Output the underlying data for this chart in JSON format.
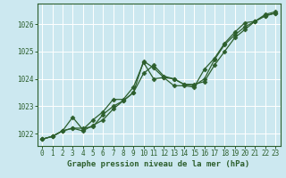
{
  "xlabel": "Graphe pression niveau de la mer (hPa)",
  "x": [
    0,
    1,
    2,
    3,
    4,
    5,
    6,
    7,
    8,
    9,
    10,
    11,
    12,
    13,
    14,
    15,
    16,
    17,
    18,
    19,
    20,
    21,
    22,
    23
  ],
  "line1": [
    1021.8,
    1021.9,
    1022.1,
    1022.2,
    1022.1,
    1022.3,
    1022.5,
    1022.9,
    1023.2,
    1023.5,
    1024.65,
    1024.4,
    1024.05,
    1024.0,
    1023.8,
    1023.8,
    1023.9,
    1024.5,
    1025.0,
    1025.5,
    1025.8,
    1026.1,
    1026.3,
    1026.4
  ],
  "line2": [
    1021.8,
    1021.9,
    1022.1,
    1022.2,
    1022.2,
    1022.25,
    1022.7,
    1023.0,
    1023.2,
    1023.5,
    1024.2,
    1024.5,
    1024.1,
    1024.0,
    1023.8,
    1023.75,
    1024.0,
    1024.7,
    1025.25,
    1025.6,
    1025.9,
    1026.1,
    1026.3,
    1026.4
  ],
  "line3": [
    1021.8,
    1021.9,
    1022.1,
    1022.6,
    1022.15,
    1022.5,
    1022.8,
    1023.25,
    1023.25,
    1023.7,
    1024.6,
    1024.0,
    1024.05,
    1023.75,
    1023.75,
    1023.7,
    1024.35,
    1024.75,
    1025.3,
    1025.7,
    1026.05,
    1026.1,
    1026.35,
    1026.45
  ],
  "bg_color": "#cce8f0",
  "line_color": "#2d5f2d",
  "marker": "D",
  "marker_size": 2.5,
  "linewidth": 0.9,
  "ylim_min": 1021.55,
  "ylim_max": 1026.75,
  "yticks": [
    1022,
    1023,
    1024,
    1025,
    1026
  ],
  "xticks": [
    0,
    1,
    2,
    3,
    4,
    5,
    6,
    7,
    8,
    9,
    10,
    11,
    12,
    13,
    14,
    15,
    16,
    17,
    18,
    19,
    20,
    21,
    22,
    23
  ],
  "grid_color": "#ffffff",
  "label_color": "#2d5f2d",
  "xlabel_fontsize": 6.5,
  "tick_fontsize": 5.5
}
